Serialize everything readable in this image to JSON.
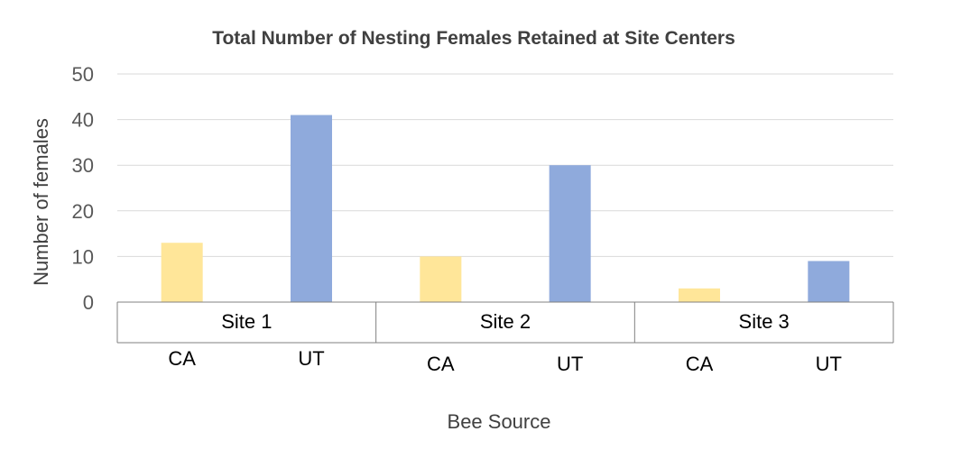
{
  "chart_data": {
    "type": "bar",
    "title": "Total Number of Nesting Females Retained at Site Centers",
    "xlabel": "Bee Source",
    "ylabel": "Number of females",
    "ylim": [
      0,
      50
    ],
    "yticks": [
      "0",
      "10",
      "20",
      "30",
      "40",
      "50"
    ],
    "grid": true,
    "groups": [
      {
        "label": "Site 1",
        "bars": [
          {
            "category": "CA",
            "value": 13,
            "color": "#FFE699"
          },
          {
            "category": "UT",
            "value": 41,
            "color": "#8FAADC"
          }
        ]
      },
      {
        "label": "Site 2",
        "bars": [
          {
            "category": "CA",
            "value": 10,
            "color": "#FFE699"
          },
          {
            "category": "UT",
            "value": 30,
            "color": "#8FAADC"
          }
        ]
      },
      {
        "label": "Site 3",
        "bars": [
          {
            "category": "CA",
            "value": 3,
            "color": "#FFE699"
          },
          {
            "category": "UT",
            "value": 9,
            "color": "#8FAADC"
          }
        ]
      }
    ]
  }
}
